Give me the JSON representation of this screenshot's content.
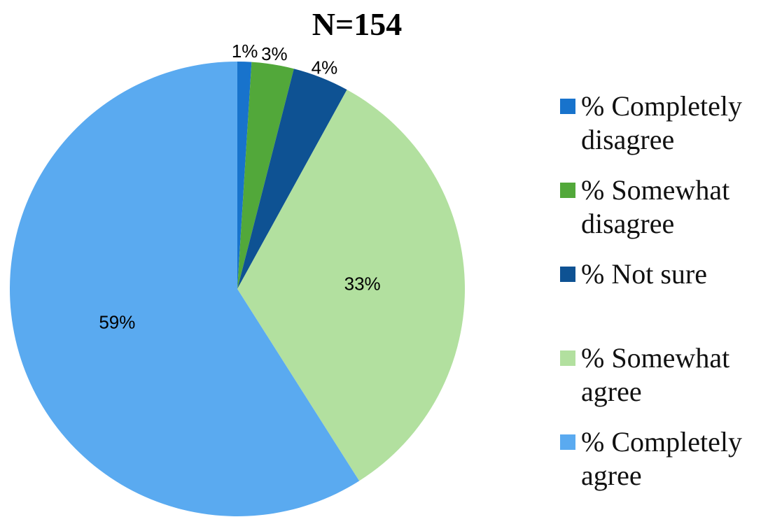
{
  "chart_data": {
    "type": "pie",
    "title": "N=154",
    "categories": [
      "% Completely disagree",
      "% Somewhat disagree",
      "% Not sure",
      "% Somewhat agree",
      "% Completely agree"
    ],
    "values": [
      1,
      3,
      4,
      33,
      59
    ],
    "value_labels": [
      "1%",
      "3%",
      "4%",
      "33%",
      "59%"
    ],
    "colors": [
      "#1873cc",
      "#52a83a",
      "#0e5293",
      "#b2e09f",
      "#5aaaf0"
    ],
    "legend": "right"
  }
}
